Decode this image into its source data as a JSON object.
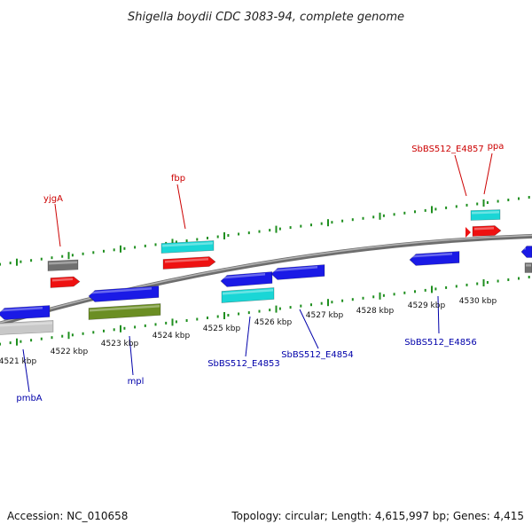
{
  "title": "Shigella boydii CDC 3083-94, complete genome",
  "footer": {
    "accession": "Accession: NC_010658",
    "summary": "Topology: circular; Length: 4,615,997 bp; Genes: 4,415"
  },
  "colors": {
    "backbone": "#8a8a8a",
    "tick": "#1f8f1f",
    "forward_label": "#cc0000",
    "reverse_label": "#0000aa",
    "blue_gene": "#1a1ae6",
    "red_gene": "#ee1111",
    "cyan_gene": "#1ad6d6",
    "gray_gene": "#707070",
    "lightgray_gene": "#c8c8c8",
    "olive_gene": "#6b8e23"
  },
  "scale_ticks": [
    {
      "label": "4521 kbp"
    },
    {
      "label": "4522 kbp"
    },
    {
      "label": "4523 kbp"
    },
    {
      "label": "4524 kbp"
    },
    {
      "label": "4525 kbp"
    },
    {
      "label": "4526 kbp"
    },
    {
      "label": "4527 kbp"
    },
    {
      "label": "4528 kbp"
    },
    {
      "label": "4529 kbp"
    },
    {
      "label": "4530 kbp"
    }
  ],
  "gene_labels": [
    {
      "name": "yjgA",
      "strand": "forward"
    },
    {
      "name": "fbp",
      "strand": "forward"
    },
    {
      "name": "SbBS512_E4857",
      "strand": "forward"
    },
    {
      "name": "ppa",
      "strand": "forward"
    },
    {
      "name": "pmbA",
      "strand": "reverse"
    },
    {
      "name": "mpl",
      "strand": "reverse"
    },
    {
      "name": "SbBS512_E4853",
      "strand": "reverse"
    },
    {
      "name": "SbBS512_E4854",
      "strand": "reverse"
    },
    {
      "name": "SbBS512_E4856",
      "strand": "reverse"
    }
  ]
}
